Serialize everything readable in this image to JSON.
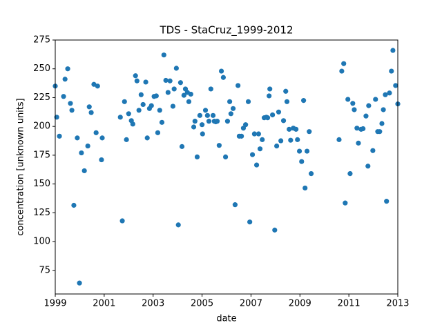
{
  "chart_data": {
    "type": "scatter",
    "title": "TDS - StaCruz_1999-2012",
    "xlabel": "date",
    "ylabel": "concentration [unknown units]",
    "color": "#1f77b4",
    "x": [
      1999.0,
      1999.06,
      1999.17,
      1999.34,
      1999.4,
      1999.51,
      1999.62,
      1999.68,
      1999.76,
      1999.9,
      1999.99,
      2000.07,
      2000.19,
      2000.33,
      2000.39,
      2000.47,
      2000.58,
      2000.67,
      2000.73,
      2000.89,
      2000.92,
      2001.66,
      2001.74,
      2001.83,
      2001.91,
      2002.0,
      2002.11,
      2002.17,
      2002.28,
      2002.34,
      2002.42,
      2002.51,
      2002.59,
      2002.7,
      2002.76,
      2002.85,
      2002.93,
      2003.04,
      2003.13,
      2003.19,
      2003.27,
      2003.36,
      2003.44,
      2003.52,
      2003.61,
      2003.69,
      2003.81,
      2003.86,
      2003.95,
      2004.03,
      2004.12,
      2004.18,
      2004.26,
      2004.32,
      2004.4,
      2004.46,
      2004.54,
      2004.66,
      2004.71,
      2004.8,
      2004.91,
      2005.0,
      2005.02,
      2005.14,
      2005.22,
      2005.28,
      2005.36,
      2005.45,
      2005.5,
      2005.56,
      2005.62,
      2005.7,
      2005.79,
      2005.87,
      2005.96,
      2006.04,
      2006.13,
      2006.18,
      2006.27,
      2006.35,
      2006.47,
      2006.52,
      2006.61,
      2006.69,
      2006.78,
      2006.89,
      2006.95,
      2007.06,
      2007.14,
      2007.23,
      2007.31,
      2007.37,
      2007.46,
      2007.54,
      2007.63,
      2007.68,
      2007.74,
      2007.77,
      2007.88,
      2007.97,
      2008.05,
      2008.13,
      2008.22,
      2008.33,
      2008.42,
      2008.47,
      2008.56,
      2008.62,
      2008.73,
      2008.84,
      2008.9,
      2008.98,
      2009.07,
      2009.15,
      2009.21,
      2009.29,
      2009.38,
      2009.46,
      2010.6,
      2010.71,
      2010.79,
      2010.85,
      2010.96,
      2011.05,
      2011.16,
      2011.22,
      2011.33,
      2011.39,
      2011.5,
      2011.58,
      2011.7,
      2011.78,
      2011.81,
      2011.98,
      2012.09,
      2012.18,
      2012.26,
      2012.35,
      2012.41,
      2012.49,
      2012.54,
      2012.66,
      2012.74,
      2012.8,
      2012.91,
      2013.0
    ],
    "values": [
      235,
      208,
      191.5,
      226,
      241,
      250,
      220,
      214,
      131.5,
      190,
      64,
      177,
      161.5,
      183,
      217,
      212,
      236.5,
      194.5,
      235,
      171,
      190,
      208,
      118,
      221.5,
      188.5,
      211,
      205,
      202,
      244,
      239.5,
      214,
      227.5,
      219,
      238.5,
      190,
      215.5,
      218,
      226,
      226.5,
      194.5,
      214,
      203.5,
      262,
      240,
      229.5,
      239.5,
      217.5,
      232.5,
      250.5,
      114.5,
      238,
      182.5,
      227,
      232.5,
      229.5,
      221.5,
      228,
      199.5,
      204.5,
      173.5,
      209.5,
      201.5,
      193.5,
      214,
      209.5,
      204.5,
      232.5,
      209.5,
      204.5,
      204,
      204.5,
      183.5,
      248,
      242.5,
      173.5,
      204.5,
      221.5,
      211,
      215.5,
      132,
      235.5,
      191.5,
      191.5,
      198.5,
      201.5,
      221.5,
      117,
      175.5,
      193.5,
      166.5,
      193.5,
      180.5,
      188.5,
      207.5,
      208,
      207.5,
      226.5,
      232.5,
      210,
      110,
      183,
      212.5,
      187.5,
      205,
      230.5,
      221.5,
      197.5,
      188,
      198.5,
      197.5,
      188.5,
      178.5,
      169.5,
      222.5,
      146.5,
      178.5,
      195.5,
      159,
      188.5,
      248,
      254.5,
      133.5,
      223.5,
      159,
      220,
      214.5,
      198.5,
      185.5,
      197.5,
      198,
      209,
      165.5,
      218,
      179,
      223.5,
      195.5,
      195.5,
      202.5,
      214.5,
      227.5,
      135,
      229,
      248,
      266,
      235.5,
      219.5
    ],
    "xlim": [
      1999,
      2013
    ],
    "xticks": [
      1999,
      2001,
      2003,
      2005,
      2007,
      2009,
      2011,
      2013
    ],
    "ylim": [
      54.5,
      275
    ],
    "yticks": [
      75,
      100,
      125,
      150,
      175,
      200,
      225,
      250,
      275
    ]
  }
}
